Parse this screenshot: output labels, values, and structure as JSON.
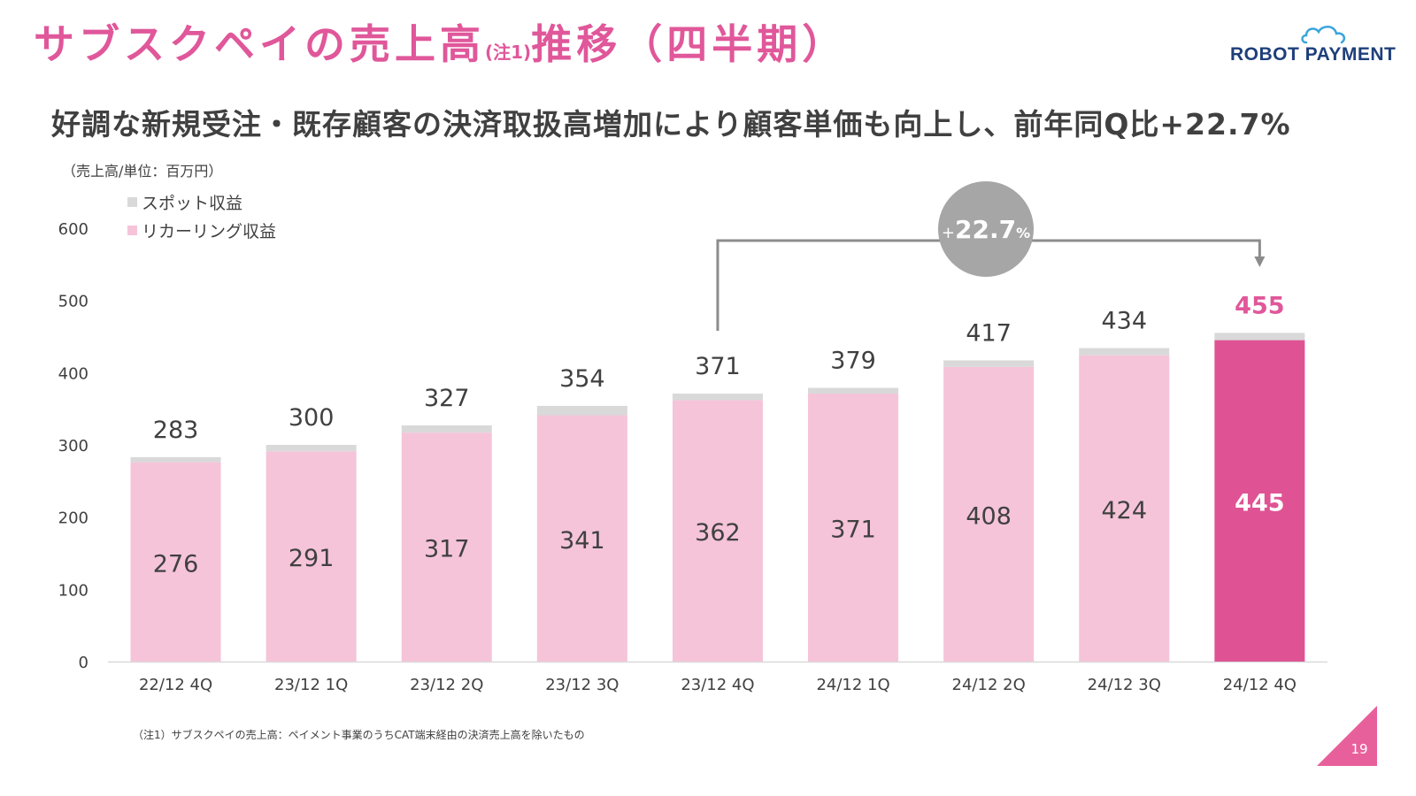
{
  "header": {
    "title_main": "サブスクペイの売上高",
    "title_note": "(注1)",
    "title_tail": "推移（四半期）",
    "logo_text": "ROBOT PAYMENT"
  },
  "subtitle": "好調な新規受注・既存顧客の決済取扱高増加により顧客単価も向上し、前年同Q比+22.7%",
  "colors": {
    "recurring": "#f5c4d9",
    "spot": "#d9d9d9",
    "highlight": "#df5394",
    "accent_text": "#e0579a",
    "growth_circle": "#a6a6a6",
    "connector": "#8c8c8c"
  },
  "chart_data": {
    "type": "bar",
    "stacked": true,
    "unit_label": "（売上高/単位：百万円）",
    "categories": [
      "22/12 4Q",
      "23/12 1Q",
      "23/12 2Q",
      "23/12 3Q",
      "23/12 4Q",
      "24/12 1Q",
      "24/12 2Q",
      "24/12 3Q",
      "24/12 4Q"
    ],
    "series": [
      {
        "name": "リカーリング収益",
        "values": [
          276,
          291,
          317,
          341,
          362,
          371,
          408,
          424,
          445
        ]
      },
      {
        "name": "スポット収益",
        "values": [
          7,
          9,
          10,
          13,
          9,
          8,
          9,
          10,
          10
        ]
      }
    ],
    "totals": [
      283,
      300,
      327,
      354,
      371,
      379,
      417,
      434,
      455
    ],
    "ylim": [
      0,
      600
    ],
    "yticks": [
      0,
      100,
      200,
      300,
      400,
      500,
      600
    ],
    "highlight_index": 8,
    "legend_position": "top-left",
    "annotation": {
      "label_prefix": "+",
      "value": "22.7",
      "suffix": "%",
      "from_index": 4,
      "to_index": 8
    }
  },
  "footnote": "（注1）サブスクペイの売上高：ペイメント事業のうちCAT端末経由の決済売上高を除いたもの",
  "page_number": "19"
}
